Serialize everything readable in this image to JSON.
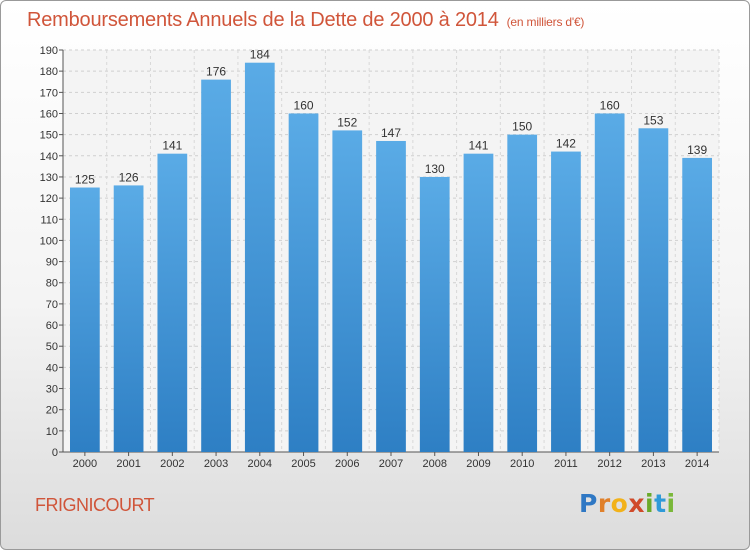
{
  "header": {
    "title": "Remboursements Annuels de la Dette de 2000 à 2014",
    "unit": "(en milliers d'€)"
  },
  "footer": {
    "commune": "FRIGNICOURT"
  },
  "logo": {
    "text": "Proxiti"
  },
  "chart_data": {
    "type": "bar",
    "title": "Remboursements Annuels de la Dette de 2000 à 2014",
    "subtitle": "(en milliers d'€)",
    "categories": [
      "2000",
      "2001",
      "2002",
      "2003",
      "2004",
      "2005",
      "2006",
      "2007",
      "2008",
      "2009",
      "2010",
      "2011",
      "2012",
      "2013",
      "2014"
    ],
    "values": [
      125,
      126,
      141,
      176,
      184,
      160,
      152,
      147,
      130,
      141,
      150,
      142,
      160,
      153,
      139
    ],
    "ylim": [
      0,
      190
    ],
    "ytick_step": 10,
    "grid": true,
    "bar_color": "#5aabe6",
    "bar_color_dark": "#2e7fc4"
  }
}
